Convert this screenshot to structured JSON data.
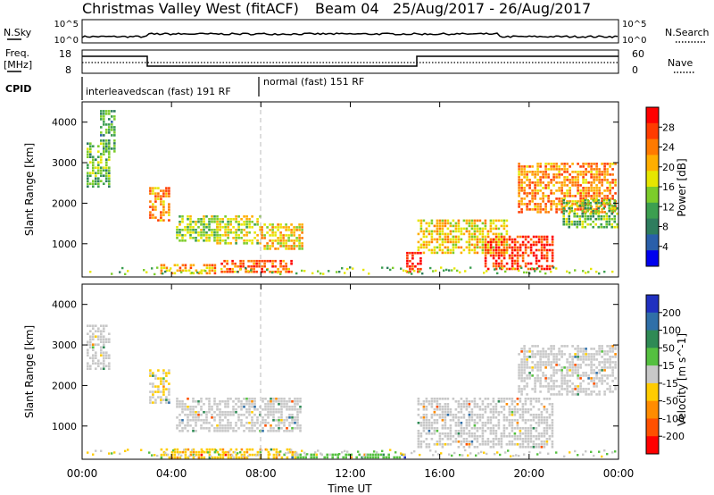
{
  "header": {
    "title": "Christmas Valley West (fitACF)",
    "beam": "Beam 04",
    "date_range": "25/Aug/2017 - 26/Aug/2017"
  },
  "top_panels": {
    "nsky_label": "N.Sky",
    "nsearch_label": "N.Search",
    "freq_label_1": "Freq.",
    "freq_label_2": "[MHz]",
    "nave_label": "Nave",
    "cpid_label": "CPID",
    "noise_left_ticks": [
      "10^5",
      "10^0"
    ],
    "noise_right_ticks": [
      "10^5",
      "10^0"
    ],
    "freq_left_ticks": [
      "18",
      "8"
    ],
    "nave_right_ticks": [
      "60",
      "0"
    ],
    "cpid_segments": [
      "interleavedscan (fast) 191 RF",
      "normal (fast) 151 RF"
    ]
  },
  "power_colorbar": {
    "label": "Power [dB]",
    "ticks": [
      "28",
      "24",
      "20",
      "16",
      "12",
      "8",
      "4"
    ],
    "colors": [
      "#ff0000",
      "#ff3b00",
      "#ff7a00",
      "#ffae00",
      "#e6e600",
      "#7ccc2a",
      "#3c9f50",
      "#2e7d5e",
      "#2a5faa",
      "#0000ee"
    ]
  },
  "velocity_colorbar": {
    "label": "Velocity [m s^-1]",
    "ticks": [
      "200",
      "100",
      "50",
      "15",
      "-15",
      "-50",
      "-100",
      "-200"
    ],
    "colors": [
      "#2030c0",
      "#2f6fa8",
      "#2f8a55",
      "#55c040",
      "#c8c8c8",
      "#ffcc00",
      "#ff8c00",
      "#ff5000",
      "#ff0000"
    ]
  },
  "axes": {
    "ylabel": "Slant Range [km]",
    "xlabel": "Time UT",
    "yticks": [
      "4000",
      "3000",
      "2000",
      "1000"
    ],
    "xticks": [
      "00:00",
      "04:00",
      "08:00",
      "12:00",
      "16:00",
      "20:00",
      "00:00"
    ]
  },
  "chart_data": [
    {
      "type": "heatmap",
      "title": "Power",
      "xlabel": "Time UT",
      "ylabel": "Slant Range [km]",
      "xlim_hours": [
        0,
        24
      ],
      "ylim_km": [
        180,
        4500
      ],
      "zlabel": "Power [dB]",
      "zlim": [
        0,
        30
      ],
      "regions": [
        {
          "t0": 0.2,
          "t1": 1.2,
          "r0": 2400,
          "r1": 3500,
          "z": 12
        },
        {
          "t0": 0.8,
          "t1": 1.5,
          "r0": 3200,
          "r1": 4300,
          "z": 10
        },
        {
          "t0": 3.0,
          "t1": 3.9,
          "r0": 1600,
          "r1": 2400,
          "z": 22
        },
        {
          "t0": 4.2,
          "t1": 6.0,
          "r0": 1100,
          "r1": 1700,
          "z": 14
        },
        {
          "t0": 6.0,
          "t1": 8.0,
          "r0": 1000,
          "r1": 1700,
          "z": 16
        },
        {
          "t0": 8.0,
          "t1": 9.8,
          "r0": 900,
          "r1": 1500,
          "z": 18
        },
        {
          "t0": 6.2,
          "t1": 9.4,
          "r0": 300,
          "r1": 600,
          "z": 24
        },
        {
          "t0": 3.5,
          "t1": 6.0,
          "r0": 300,
          "r1": 500,
          "z": 20
        },
        {
          "t0": 14.5,
          "t1": 15.2,
          "r0": 300,
          "r1": 800,
          "z": 28
        },
        {
          "t0": 15.0,
          "t1": 19.0,
          "r0": 800,
          "r1": 1600,
          "z": 18
        },
        {
          "t0": 18.0,
          "t1": 21.0,
          "r0": 400,
          "r1": 1200,
          "z": 26
        },
        {
          "t0": 19.5,
          "t1": 23.9,
          "r0": 1800,
          "r1": 3000,
          "z": 22
        },
        {
          "t0": 21.5,
          "t1": 23.9,
          "r0": 1400,
          "r1": 2100,
          "z": 12
        }
      ]
    },
    {
      "type": "heatmap",
      "title": "Velocity",
      "xlabel": "Time UT",
      "ylabel": "Slant Range [km]",
      "xlim_hours": [
        0,
        24
      ],
      "ylim_km": [
        180,
        4500
      ],
      "zlabel": "Velocity [m s^-1]",
      "zlim": [
        -200,
        200
      ],
      "regions": [
        {
          "t0": 0.2,
          "t1": 1.2,
          "r0": 2400,
          "r1": 3500,
          "z": 0
        },
        {
          "t0": 3.0,
          "t1": 3.9,
          "r0": 1600,
          "r1": 2400,
          "z": -20
        },
        {
          "t0": 4.2,
          "t1": 9.8,
          "r0": 900,
          "r1": 1700,
          "z": 0
        },
        {
          "t0": 3.5,
          "t1": 9.5,
          "r0": 250,
          "r1": 450,
          "z": -60
        },
        {
          "t0": 9.0,
          "t1": 14.5,
          "r0": 200,
          "r1": 320,
          "z": 30
        },
        {
          "t0": 15.0,
          "t1": 21.0,
          "r0": 500,
          "r1": 1700,
          "z": 0
        },
        {
          "t0": 19.5,
          "t1": 23.9,
          "r0": 1800,
          "r1": 3000,
          "z": 0
        }
      ]
    }
  ]
}
